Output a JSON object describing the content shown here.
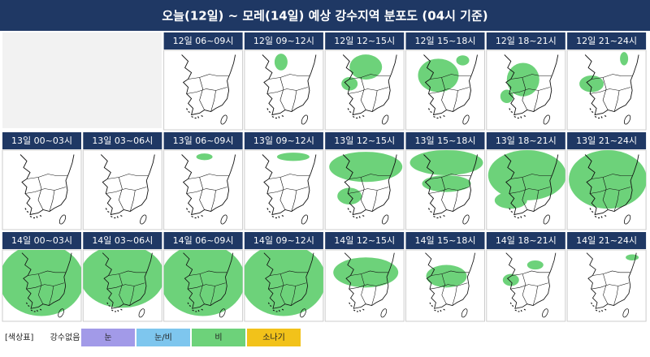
{
  "header": {
    "title": "오늘(12일) ~ 모레(14일) 예상 강수지역 분포도 (04시 기준)"
  },
  "rows": [
    {
      "panels": [
        "12일 06~09시",
        "12일 09~12시",
        "12일 12~15시",
        "12일 15~18시",
        "12일 18~21시",
        "12일 21~24시"
      ]
    },
    {
      "panels": [
        "13일 00~03시",
        "13일 03~06시",
        "13일 06~09시",
        "13일 09~12시",
        "13일 12~15시",
        "13일 15~18시",
        "13일 18~21시",
        "13일 21~24시"
      ]
    },
    {
      "panels": [
        "14일 00~03시",
        "14일 03~06시",
        "14일 06~09시",
        "14일 09~12시",
        "14일 12~15시",
        "14일 15~18시",
        "14일 18~21시",
        "14일 21~24시"
      ]
    }
  ],
  "legend": {
    "label": "[색상표]",
    "items": [
      {
        "name": "강수없음"
      },
      {
        "name": "눈",
        "color": "#a29ae8"
      },
      {
        "name": "눈/비",
        "color": "#7ec6ee"
      },
      {
        "name": "비",
        "color": "#6dd27a"
      },
      {
        "name": "소나기",
        "color": "#f2c21a"
      }
    ]
  }
}
